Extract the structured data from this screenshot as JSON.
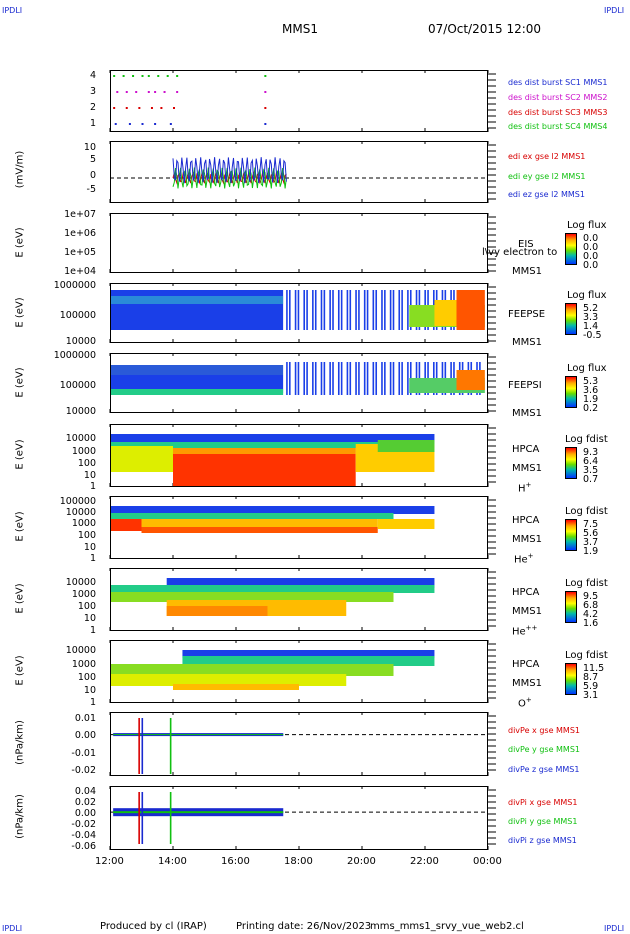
{
  "header": {
    "corner_label": "IPDLI",
    "spacecraft": "MMS1",
    "datetime": "07/Oct/2015 12:00"
  },
  "footer": {
    "produced_by": "Produced by cl (IRAP)",
    "printing_date": "Printing date: 26/Nov/2023",
    "filename": "mms_mms1_srvy_vue_web2.cl"
  },
  "colors": {
    "blue": "#1a2ad0",
    "red": "#d80000",
    "green": "#10c010",
    "magenta": "#cc10cc"
  },
  "chart_data": {
    "type": "heatmap",
    "x_axis": {
      "tick_labels": [
        "12:00",
        "14:00",
        "16:00",
        "18:00",
        "20:00",
        "22:00",
        "00:00"
      ],
      "range_hours": [
        12,
        24
      ]
    },
    "panels": [
      {
        "id": "burst",
        "type": "scatter",
        "ylabel": "",
        "ytick_labels": [
          "4",
          "3",
          "2",
          "1"
        ],
        "legend": [
          {
            "text": "des dist burst SC1 MMS1",
            "color": "#1a2ad0"
          },
          {
            "text": "des dist burst SC2 MMS2",
            "color": "#cc10cc"
          },
          {
            "text": "des dist burst SC3 MMS3",
            "color": "#d80000"
          },
          {
            "text": "des dist burst SC4 MMS4",
            "color": "#10c010"
          }
        ]
      },
      {
        "id": "edi",
        "type": "line",
        "ylabel": "(mV/m)",
        "ytick_labels": [
          "10",
          "5",
          "0",
          "-5"
        ],
        "ylim": [
          -8,
          12
        ],
        "legend": [
          {
            "text": "edi ex gse l2 MMS1",
            "color": "#d80000"
          },
          {
            "text": "edi ey gse l2 MMS1",
            "color": "#10c010"
          },
          {
            "text": "edi ez gse l2 MMS1",
            "color": "#1a2ad0"
          }
        ]
      },
      {
        "id": "eis",
        "type": "heatmap",
        "ylabel": "E (eV)",
        "ytick_labels": [
          "1e+07",
          "1e+06",
          "1e+05",
          "1e+04"
        ],
        "instrument": "EIS",
        "instrument_overlap": "l\\vy electron to",
        "spacecraft": "MMS1",
        "cbar_title": "Log flux",
        "cbar_values": [
          "0.0",
          "0.0",
          "0.0",
          "0.0"
        ]
      },
      {
        "id": "feepse",
        "type": "heatmap",
        "ylabel": "E (eV)",
        "ytick_labels": [
          "1000000",
          "100000",
          "10000"
        ],
        "instrument": "FEEPSE",
        "spacecraft": "MMS1",
        "cbar_title": "Log flux",
        "cbar_values": [
          "5.2",
          "3.3",
          "1.4",
          "-0.5"
        ]
      },
      {
        "id": "feepsi",
        "type": "heatmap",
        "ylabel": "E (eV)",
        "ytick_labels": [
          "1000000",
          "100000",
          "10000"
        ],
        "instrument": "FEEPSI",
        "spacecraft": "MMS1",
        "cbar_title": "Log flux",
        "cbar_values": [
          "5.3",
          "3.6",
          "1.9",
          "0.2"
        ]
      },
      {
        "id": "hpca_h",
        "type": "heatmap",
        "ylabel": "E (eV)",
        "ytick_labels": [
          "10000",
          "1000",
          "100",
          "10",
          "1"
        ],
        "instrument": "HPCA",
        "spacecraft": "MMS1",
        "species": "H",
        "species_sup": "+",
        "cbar_title": "Log fdist",
        "cbar_values": [
          "9.3",
          "6.4",
          "3.5",
          "0.7"
        ]
      },
      {
        "id": "hpca_he",
        "type": "heatmap",
        "ylabel": "E (eV)",
        "ytick_labels": [
          "100000",
          "10000",
          "1000",
          "100",
          "10",
          "1"
        ],
        "instrument": "HPCA",
        "spacecraft": "MMS1",
        "species": "He",
        "species_sup": "+",
        "cbar_title": "Log fdist",
        "cbar_values": [
          "7.5",
          "5.6",
          "3.7",
          "1.9"
        ]
      },
      {
        "id": "hpca_hepp",
        "type": "heatmap",
        "ylabel": "E (eV)",
        "ytick_labels": [
          "10000",
          "1000",
          "100",
          "10",
          "1"
        ],
        "instrument": "HPCA",
        "spacecraft": "MMS1",
        "species": "He",
        "species_sup": "++",
        "cbar_title": "Log fdist",
        "cbar_values": [
          "9.5",
          "6.8",
          "4.2",
          "1.6"
        ]
      },
      {
        "id": "hpca_o",
        "type": "heatmap",
        "ylabel": "E (eV)",
        "ytick_labels": [
          "10000",
          "1000",
          "100",
          "10",
          "1"
        ],
        "instrument": "HPCA",
        "spacecraft": "MMS1",
        "species": "O",
        "species_sup": "+",
        "cbar_title": "Log fdist",
        "cbar_values": [
          "11.5",
          "8.7",
          "5.9",
          "3.1"
        ]
      },
      {
        "id": "divpe",
        "type": "line",
        "ylabel": "(nPa/km)",
        "ytick_labels": [
          "0.01",
          "0.00",
          "-0.01",
          "-0.02"
        ],
        "ylim": [
          -0.022,
          0.012
        ],
        "legend": [
          {
            "text": "divPe x gse MMS1",
            "color": "#d80000"
          },
          {
            "text": "divPe y gse MMS1",
            "color": "#10c010"
          },
          {
            "text": "divPe z gse MMS1",
            "color": "#1a2ad0"
          }
        ]
      },
      {
        "id": "divpi",
        "type": "line",
        "ylabel": "(nPa/km)",
        "ytick_labels": [
          "0.04",
          "0.02",
          "0.00",
          "-0.02",
          "-0.04",
          "-0.06"
        ],
        "ylim": [
          -0.065,
          0.045
        ],
        "legend": [
          {
            "text": "divPi x gse MMS1",
            "color": "#d80000"
          },
          {
            "text": "divPi y gse MMS1",
            "color": "#10c010"
          },
          {
            "text": "divPi z gse MMS1",
            "color": "#1a2ad0"
          }
        ]
      }
    ]
  }
}
